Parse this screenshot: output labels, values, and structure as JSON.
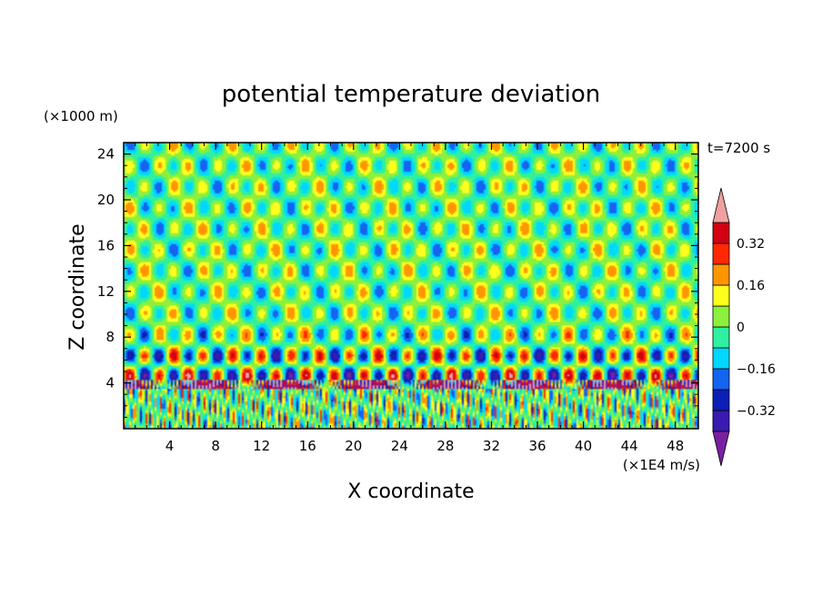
{
  "chart_data": {
    "type": "heatmap",
    "title": "potential temperature deviation",
    "xlabel": "X coordinate",
    "ylabel": "Z coordinate",
    "x_unit": "(×1E4 m/s)",
    "y_unit": "(×1000 m)",
    "time_label": "t=7200 s",
    "xlim": [
      0,
      50
    ],
    "ylim": [
      0,
      25
    ],
    "x_ticks": [
      4,
      8,
      12,
      16,
      20,
      24,
      28,
      32,
      36,
      40,
      44,
      48
    ],
    "y_ticks": [
      4,
      8,
      12,
      16,
      20,
      24
    ],
    "x_tick_labels": [
      "4",
      "8",
      "12",
      "16",
      "20",
      "24",
      "28",
      "32",
      "36",
      "40",
      "44",
      "48"
    ],
    "y_tick_labels": [
      "4",
      "8",
      "12",
      "16",
      "20",
      "24"
    ],
    "colorbar": {
      "levels": [
        -0.4,
        -0.32,
        -0.24,
        -0.16,
        -0.08,
        0,
        0.08,
        0.16,
        0.24,
        0.32,
        0.4
      ],
      "colors": [
        "#7a1fa2",
        "#3a1ab0",
        "#0a1fb5",
        "#1464f0",
        "#00d8ff",
        "#2ef0a0",
        "#8cf03c",
        "#ffff1e",
        "#ff9600",
        "#ff2800",
        "#d20014",
        "#f0a0a0"
      ],
      "tick_values": [
        0.32,
        0.16,
        0,
        -0.16,
        -0.32
      ],
      "tick_labels": [
        "0.32",
        "0.16",
        "0",
        "−0.16",
        "−0.32"
      ]
    }
  }
}
